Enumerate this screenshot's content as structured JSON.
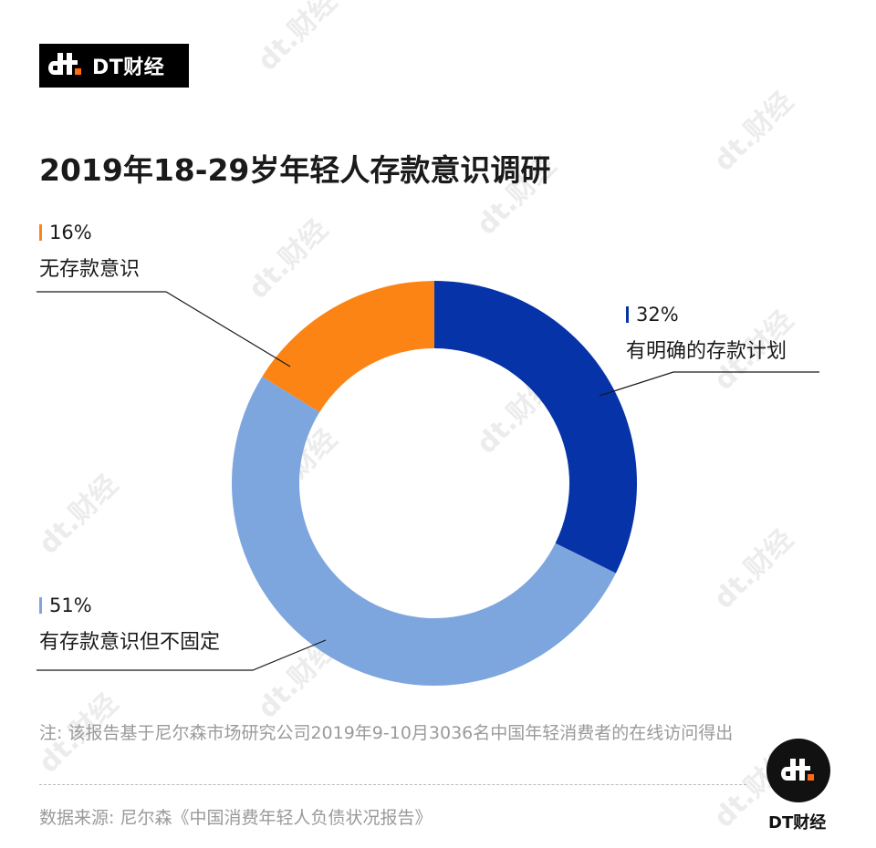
{
  "brand": {
    "logo_text": "DT财经",
    "footer_brand": "DT财经",
    "watermark_text": "dt.财经"
  },
  "title": "2019年18-29岁年轻人存款意识调研",
  "chart_data": {
    "type": "pie",
    "donut": true,
    "title": "2019年18-29岁年轻人存款意识调研",
    "slices": [
      {
        "label": "有明确的存款计划",
        "value": 32,
        "value_label": "32%",
        "color": "#0633a8"
      },
      {
        "label": "有存款意识但不固定",
        "value": 51,
        "value_label": "51%",
        "color": "#7ea6de"
      },
      {
        "label": "无存款意识",
        "value": 16,
        "value_label": "16%",
        "color": "#fb8414"
      }
    ],
    "legend": "none"
  },
  "footnote": "注: 该报告基于尼尔森市场研究公司2019年9-10月3036名中国年轻消费者的在线访问得出",
  "source": "数据来源: 尼尔森《中国消费年轻人负债状况报告》",
  "colors": {
    "accent": "#ff6a13",
    "leader": "#1a1a1a",
    "muted": "#9a9a9a"
  }
}
